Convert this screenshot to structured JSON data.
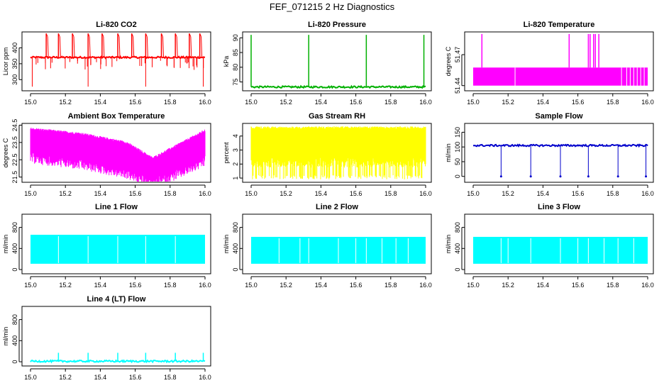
{
  "title": "FEF_071215  2 Hz Diagnostics",
  "chart_data": [
    {
      "type": "line",
      "title": "Li-820 CO2",
      "xlabel": "",
      "ylabel": "Licor ppm",
      "color": "#ff0000",
      "xlim": [
        15.0,
        16.0
      ],
      "ylim": [
        265,
        450
      ],
      "xticks": [
        15.0,
        15.2,
        15.4,
        15.6,
        15.8,
        16.0
      ],
      "yticks": [
        300,
        350,
        400
      ],
      "series": [
        {
          "x": [
            15.0,
            16.0
          ],
          "y": [
            370,
            370
          ]
        }
      ],
      "spikes_up": [
        15.09,
        15.16,
        15.24,
        15.33,
        15.41,
        15.5,
        15.58,
        15.66,
        15.75,
        15.83,
        15.91,
        15.97
      ],
      "spikes_down": [
        15.01,
        15.33,
        15.66,
        15.99
      ],
      "peak": 445,
      "trough": 278
    },
    {
      "type": "line",
      "title": "Li-820 Pressure",
      "xlabel": "",
      "ylabel": "kPa",
      "color": "#00b000",
      "xlim": [
        15.0,
        16.0
      ],
      "ylim": [
        72,
        92
      ],
      "xticks": [
        15.0,
        15.2,
        15.4,
        15.6,
        15.8,
        16.0
      ],
      "yticks": [
        75,
        80,
        85,
        90
      ],
      "series": [
        {
          "x": [
            15.0,
            16.0
          ],
          "y": [
            73.3,
            73.3
          ]
        }
      ],
      "spikes_up": [
        15.0,
        15.33,
        15.66,
        15.99
      ],
      "peak": 91
    },
    {
      "type": "line",
      "title": "Li-820 Temperature",
      "xlabel": "",
      "ylabel": "degrees C",
      "color": "#ff00ff",
      "xlim": [
        15.0,
        16.0
      ],
      "ylim": [
        51.435,
        51.492
      ],
      "xticks": [
        15.0,
        15.2,
        15.4,
        15.6,
        15.8,
        16.0
      ],
      "yticks": [
        51.44,
        51.47
      ],
      "series": [
        {
          "x": [
            15.0,
            16.0
          ],
          "y": [
            51.4575,
            51.4575
          ]
        }
      ],
      "band": [
        51.44,
        51.4575
      ],
      "peak": 51.49
    },
    {
      "type": "line",
      "title": "Ambient Box Temperature",
      "xlabel": "",
      "ylabel": "degrees C",
      "color": "#ff00ff",
      "xlim": [
        15.0,
        16.0
      ],
      "ylim": [
        21.2,
        24.6
      ],
      "xticks": [
        15.0,
        15.2,
        15.4,
        15.6,
        15.8,
        16.0
      ],
      "yticks": [
        21.5,
        22.5,
        23.5,
        24.5
      ],
      "series": [
        {
          "name": "upper",
          "x": [
            15.0,
            15.3,
            15.55,
            15.7,
            15.85,
            16.0
          ],
          "y": [
            24.3,
            24.0,
            23.5,
            22.6,
            23.4,
            24.2
          ]
        },
        {
          "name": "lower",
          "x": [
            15.0,
            15.3,
            15.55,
            15.7,
            15.85,
            16.0
          ],
          "y": [
            22.9,
            22.5,
            22.0,
            21.4,
            22.0,
            22.7
          ]
        }
      ]
    },
    {
      "type": "line",
      "title": "Gas Stream RH",
      "xlabel": "",
      "ylabel": "percent",
      "color": "#ffff00",
      "xlim": [
        15.0,
        16.0
      ],
      "ylim": [
        0.7,
        4.9
      ],
      "xticks": [
        15.0,
        15.2,
        15.4,
        15.6,
        15.8,
        16.0
      ],
      "yticks": [
        1,
        2,
        3,
        4
      ],
      "series": [
        {
          "name": "upper",
          "x": [
            15.0,
            16.0
          ],
          "y": [
            4.6,
            4.6
          ]
        },
        {
          "name": "lower",
          "x": [
            15.0,
            16.0
          ],
          "y": [
            2.5,
            2.5
          ]
        }
      ],
      "floor": 0.9
    },
    {
      "type": "line",
      "title": "Sample Flow",
      "xlabel": "",
      "ylabel": "ml/min",
      "color": "#0000cc",
      "xlim": [
        15.0,
        16.0
      ],
      "ylim": [
        -20,
        180
      ],
      "xticks": [
        15.0,
        15.2,
        15.4,
        15.6,
        15.8,
        16.0
      ],
      "yticks": [
        0,
        50,
        100,
        150
      ],
      "series": [
        {
          "x": [
            15.0,
            16.0
          ],
          "y": [
            105,
            105
          ]
        }
      ],
      "dips": [
        15.16,
        15.33,
        15.5,
        15.66,
        15.83,
        15.99
      ],
      "dip_min": 0
    },
    {
      "type": "line",
      "title": "Line 1 Flow",
      "xlabel": "",
      "ylabel": "ml/min",
      "color": "#00ffff",
      "xlim": [
        15.0,
        16.0
      ],
      "ylim": [
        -80,
        1050
      ],
      "xticks": [
        15.0,
        15.2,
        15.4,
        15.6,
        15.8,
        16.0
      ],
      "yticks": [
        0,
        400,
        800
      ],
      "series": [
        {
          "x": [
            15.0,
            16.0
          ],
          "y": [
            660,
            660
          ]
        }
      ],
      "band": [
        110,
        660
      ],
      "gaps": [
        15.16,
        15.33,
        15.5,
        15.66,
        15.83
      ]
    },
    {
      "type": "line",
      "title": "Line 2 Flow",
      "xlabel": "",
      "ylabel": "ml/min",
      "color": "#00ffff",
      "xlim": [
        15.0,
        16.0
      ],
      "ylim": [
        -80,
        1050
      ],
      "xticks": [
        15.0,
        15.2,
        15.4,
        15.6,
        15.8,
        16.0
      ],
      "yticks": [
        0,
        400,
        800
      ],
      "series": [
        {
          "x": [
            15.0,
            16.0
          ],
          "y": [
            620,
            620
          ]
        }
      ],
      "band": [
        110,
        620
      ],
      "gaps": [
        15.16,
        15.28,
        15.33,
        15.5,
        15.6,
        15.66,
        15.75,
        15.83,
        15.9
      ]
    },
    {
      "type": "line",
      "title": "Line 3 Flow",
      "xlabel": "",
      "ylabel": "ml/min",
      "color": "#00ffff",
      "xlim": [
        15.0,
        16.0
      ],
      "ylim": [
        -80,
        1050
      ],
      "xticks": [
        15.0,
        15.2,
        15.4,
        15.6,
        15.8,
        16.0
      ],
      "yticks": [
        0,
        400,
        800
      ],
      "series": [
        {
          "x": [
            15.0,
            16.0
          ],
          "y": [
            620,
            620
          ]
        }
      ],
      "band": [
        110,
        620
      ],
      "gaps": [
        15.16,
        15.2,
        15.33,
        15.5,
        15.6,
        15.66,
        15.75,
        15.83,
        15.92
      ]
    },
    {
      "type": "line",
      "title": "Line 4 (LT) Flow",
      "xlabel": "",
      "ylabel": "ml/min",
      "color": "#00ffff",
      "xlim": [
        15.0,
        16.0
      ],
      "ylim": [
        -80,
        1050
      ],
      "xticks": [
        15.0,
        15.2,
        15.4,
        15.6,
        15.8,
        16.0
      ],
      "yticks": [
        0,
        400,
        800
      ],
      "series": [
        {
          "x": [
            15.0,
            16.0
          ],
          "y": [
            10,
            10
          ]
        }
      ],
      "spikes_up": [
        15.16,
        15.33,
        15.5,
        15.66,
        15.83,
        15.99
      ],
      "peak": 170
    }
  ]
}
